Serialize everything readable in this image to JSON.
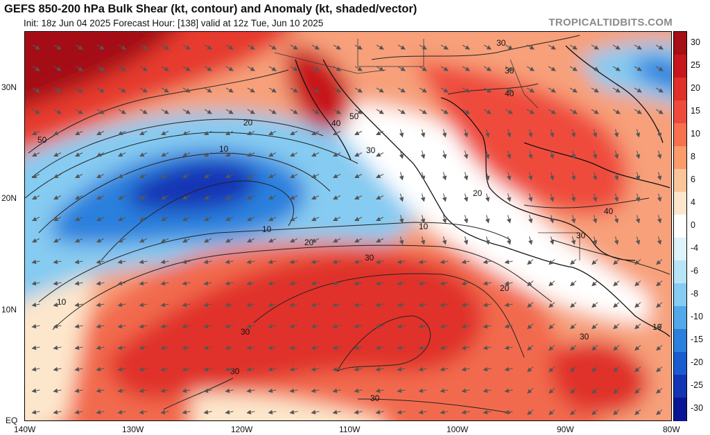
{
  "header": {
    "title": "GEFS 850-200 hPa Bulk Shear (kt, contour) and Anomaly (kt, shaded/vector)",
    "subtitle": "Init: 18z Jun 04 2025   Forecast Hour: [138]   valid at 12z Tue, Jun 10 2025",
    "brand": "TROPICALTIDBITS.COM"
  },
  "axes": {
    "lat_labels": [
      "30N",
      "20N",
      "10N",
      "EQ"
    ],
    "lon_labels": [
      "140W",
      "130W",
      "120W",
      "110W",
      "100W",
      "90W",
      "80W"
    ]
  },
  "colorbar": {
    "labels": [
      "30",
      "25",
      "20",
      "15",
      "10",
      "8",
      "6",
      "4",
      "0",
      "-4",
      "-6",
      "-8",
      "-10",
      "-15",
      "-20",
      "-25",
      "-30"
    ],
    "colors": [
      "#a50f15",
      "#c8161d",
      "#e0302a",
      "#ef4b3c",
      "#f7714f",
      "#f99b6b",
      "#fbc59a",
      "#fde7cc",
      "#ffffff",
      "#dff3fb",
      "#b7e4f7",
      "#86cbf1",
      "#52a8e8",
      "#2c80dd",
      "#1a5bd0",
      "#1235b5",
      "#0a1596"
    ]
  },
  "contour_labels": [
    "50",
    "40",
    "30",
    "20",
    "10",
    "30",
    "40",
    "50",
    "30",
    "20",
    "10",
    "30",
    "40",
    "30",
    "20",
    "10",
    "30",
    "30",
    "30",
    "10",
    "30",
    "20",
    "10",
    "30",
    "40",
    "30",
    "20",
    "30",
    "10"
  ],
  "chart_data": {
    "type": "map",
    "region": "Eastern Pacific / Mexico / Central America",
    "lon_range": [
      -140,
      -80
    ],
    "lat_range": [
      0,
      35
    ],
    "shading": "shear anomaly (kt)",
    "contour_field": "bulk shear (kt)",
    "contour_levels": [
      10,
      20,
      30,
      40,
      50
    ]
  }
}
